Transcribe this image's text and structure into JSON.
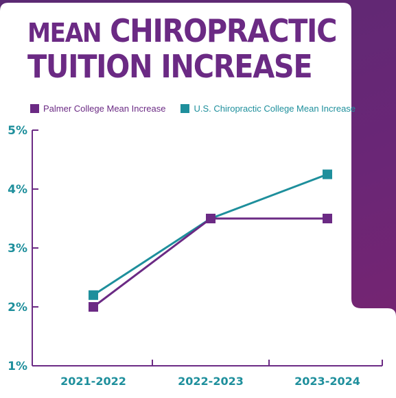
{
  "title": {
    "line1_small": "Mean",
    "line1_large": "Chiropractic",
    "line2": "Tuition Increase"
  },
  "colors": {
    "series_a": "#6b2a84",
    "series_b": "#1e8f9c",
    "axis": "#6b2a84",
    "tick_text": "#1e8f9c"
  },
  "legend": {
    "a": "Palmer College Mean Increase",
    "b": "U.S. Chiropractic College Mean Increase"
  },
  "chart_data": {
    "type": "line",
    "categories": [
      "2021-2022",
      "2022-2023",
      "2023-2024"
    ],
    "series": [
      {
        "name": "Palmer College Mean Increase",
        "values": [
          2.0,
          3.5,
          3.5
        ]
      },
      {
        "name": "U.S. Chiropractic College Mean Increase",
        "values": [
          2.2,
          3.5,
          4.25
        ]
      }
    ],
    "y_ticks": [
      "1%",
      "2%",
      "3%",
      "4%",
      "5%"
    ],
    "ylim": [
      1,
      5
    ],
    "grid": false,
    "legend_position": "top-left"
  }
}
